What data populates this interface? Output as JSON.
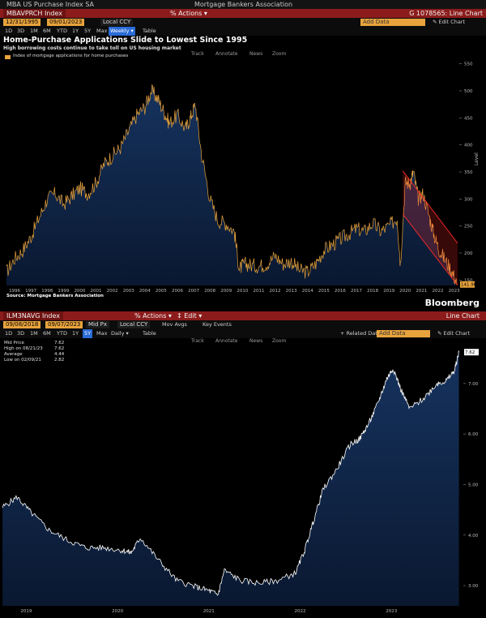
{
  "top": {
    "window_title": "MBA US Purchase Index SA",
    "window_org": "Mortgage Bankers Association",
    "ticker": "MBAVPRCH Index",
    "actions": "% Actions ▾",
    "chart_id": "G 1078565: Line Chart",
    "date_from": "12/31/1995",
    "date_to": "09/01/2023",
    "currency": "Local CCY",
    "add_data": "Add Data",
    "edit_chart": "✎ Edit Chart",
    "periods": [
      "1D",
      "3D",
      "1M",
      "6M",
      "YTD",
      "1Y",
      "5Y",
      "Max"
    ],
    "frequency": "Weekly ▾",
    "table": "Table",
    "tools": [
      "Track",
      "Annotate",
      "News",
      "Zoom"
    ],
    "headline": "Home-Purchase Applications Slide to Lowest Since 1995",
    "subhead": "High borrowing costs continue to take toll on US housing market",
    "legend": "Index of mortgage applications for home purchases",
    "axis_label": "Level",
    "last_value": "141.90",
    "source": "Source:  Mortgage Bankers Association",
    "brand": "Bloomberg"
  },
  "bottom": {
    "ticker": "ILM3NAVG Index",
    "actions": "% Actions ▾",
    "edit": "↕ Edit ▾",
    "chart_type": "Line Chart",
    "date_from": "09/08/2018",
    "date_to": "09/07/2023",
    "field": "Mid Px",
    "currency": "Local CCY",
    "mov_avgs": "Mov Avgs",
    "key_events": "Key Events",
    "periods": [
      "1D",
      "3D",
      "1M",
      "6M",
      "YTD",
      "1Y",
      "5Y",
      "Max"
    ],
    "frequency": "Daily ▾",
    "table": "Table",
    "related": "+ Related Dat",
    "add_data": "Add Data",
    "edit_chart": "✎ Edit Chart",
    "tools": [
      "Track",
      "Annotate",
      "News",
      "Zoom"
    ],
    "stats": [
      {
        "label": "Mid Price",
        "value": "7.62"
      },
      {
        "label": "High on 08/21/23",
        "value": "7.62"
      },
      {
        "label": "Average",
        "value": "4.44"
      },
      {
        "label": "Low on 02/09/21",
        "value": "2.82"
      }
    ],
    "last_value": "7.62"
  },
  "chart_data": [
    {
      "type": "area",
      "title": "Home-Purchase Applications Slide to Lowest Since 1995",
      "subtitle": "High borrowing costs continue to take toll on US housing market",
      "ylabel": "Level",
      "ylim": [
        140,
        560
      ],
      "yticks": [
        150,
        200,
        250,
        300,
        350,
        400,
        450,
        500,
        550
      ],
      "xticks": [
        "1996",
        "1997",
        "1998",
        "1999",
        "2000",
        "2001",
        "2002",
        "2003",
        "2004",
        "2005",
        "2006",
        "2007",
        "2008",
        "2009",
        "2010",
        "2011",
        "2012",
        "2013",
        "2014",
        "2015",
        "2016",
        "2017",
        "2018",
        "2019",
        "2020",
        "2021",
        "2022",
        "2023"
      ],
      "series": [
        {
          "name": "Index of mortgage applications for home purchases",
          "x": [
            1996,
            1996.5,
            1997,
            1997.5,
            1998,
            1998.5,
            1999,
            1999.5,
            2000,
            2000.5,
            2001,
            2001.5,
            2002,
            2002.5,
            2003,
            2003.5,
            2004,
            2004.5,
            2004.9,
            2005.3,
            2005.7,
            2006,
            2006.5,
            2007,
            2007.3,
            2007.6,
            2008,
            2008.5,
            2009,
            2009.5,
            2010,
            2010.3,
            2010.6,
            2011,
            2011.5,
            2012,
            2012.5,
            2013,
            2013.5,
            2014,
            2014.5,
            2015,
            2015.5,
            2016,
            2016.5,
            2017,
            2017.5,
            2018,
            2018.5,
            2019,
            2019.5,
            2020,
            2020.2,
            2020.5,
            2020.8,
            2021,
            2021.3,
            2021.6,
            2022,
            2022.3,
            2022.6,
            2023,
            2023.4,
            2023.67
          ],
          "values": [
            165,
            190,
            205,
            230,
            265,
            300,
            310,
            290,
            305,
            320,
            310,
            330,
            365,
            380,
            395,
            425,
            455,
            470,
            500,
            485,
            460,
            440,
            455,
            430,
            450,
            475,
            380,
            300,
            260,
            255,
            240,
            170,
            180,
            178,
            176,
            180,
            195,
            180,
            185,
            168,
            165,
            180,
            205,
            215,
            225,
            235,
            245,
            240,
            255,
            240,
            250,
            265,
            180,
            330,
            330,
            350,
            300,
            310,
            265,
            230,
            205,
            185,
            165,
            141.9
          ],
          "color": "#e8a33d"
        }
      ],
      "annotations": [
        "downtrend channel"
      ],
      "last_value": 141.9,
      "grid": false,
      "legend": "top-left"
    },
    {
      "type": "area",
      "ylim": [
        2.6,
        7.8
      ],
      "yticks": [
        3.0,
        4.0,
        5.0,
        6.0,
        7.0
      ],
      "xticks": [
        "2018",
        "2019",
        "2020",
        "2021",
        "2022",
        "2023"
      ],
      "series": [
        {
          "x": [
            2018.69,
            2018.85,
            2019.0,
            2019.2,
            2019.4,
            2019.6,
            2019.8,
            2020.0,
            2020.1,
            2020.2,
            2020.4,
            2020.6,
            2020.8,
            2020.95,
            2021.05,
            2021.12,
            2021.3,
            2021.5,
            2021.7,
            2021.9,
            2022.0,
            2022.1,
            2022.2,
            2022.35,
            2022.5,
            2022.6,
            2022.7,
            2022.8,
            2022.9,
            2022.97,
            2023.05,
            2023.15,
            2023.3,
            2023.45,
            2023.55,
            2023.64,
            2023.69
          ],
          "values": [
            4.55,
            4.75,
            4.45,
            4.1,
            3.9,
            3.75,
            3.75,
            3.7,
            3.65,
            3.95,
            3.5,
            3.1,
            2.98,
            2.9,
            2.82,
            3.3,
            3.1,
            3.05,
            3.1,
            3.25,
            3.7,
            4.3,
            4.9,
            5.3,
            5.8,
            5.9,
            6.2,
            6.6,
            7.1,
            7.3,
            6.9,
            6.5,
            6.7,
            7.0,
            7.05,
            7.25,
            7.62
          ],
          "color": "#ffffff"
        }
      ],
      "last_value": 7.62,
      "grid": false
    }
  ]
}
